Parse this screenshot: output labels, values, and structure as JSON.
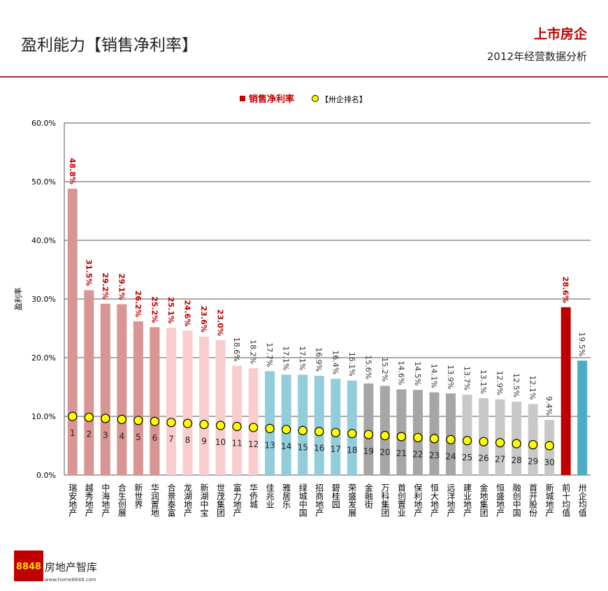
{
  "header": {
    "title": "盈利能力【销售净利率】",
    "brand": "上市房企",
    "subtitle": "2012年经营数据分析"
  },
  "footer": {
    "logo_number": "8848",
    "logo_text": "房地产智库",
    "url": "www.home8848.com"
  },
  "chart_data": {
    "type": "bar",
    "y_label": "盈利率",
    "categories": [
      "瑞安地产",
      "越秀地产",
      "中海地产",
      "合生创展",
      "新世界",
      "华润置地",
      "合景泰富",
      "龙湖地产",
      "新湖中宝",
      "世茂集团",
      "富力地产",
      "华侨城",
      "佳兆业",
      "雅居乐",
      "绿城中国",
      "招商地产",
      "碧桂园",
      "荣盛发展",
      "金融街",
      "万科集团",
      "首创置业",
      "保利地产",
      "恒大地产",
      "远洋地产",
      "建业地产",
      "金地集团",
      "恒盛地产",
      "融创中国",
      "首开股份",
      "新城地产",
      "前十均值",
      "卅企均值"
    ],
    "series": [
      {
        "name": "销售净利率",
        "color": "#c00000",
        "values": [
          48.8,
          31.5,
          29.2,
          29.1,
          26.2,
          25.2,
          25.1,
          24.6,
          23.6,
          23.0,
          18.6,
          18.2,
          17.7,
          17.1,
          17.1,
          16.9,
          16.4,
          16.1,
          15.6,
          15.2,
          14.6,
          14.5,
          14.1,
          13.9,
          13.7,
          13.1,
          12.9,
          12.5,
          12.1,
          9.4,
          28.6,
          19.5
        ],
        "value_labels": [
          "48.8%",
          "31.5%",
          "29.2%",
          "29.1%",
          "26.2%",
          "25.2%",
          "25.1%",
          "24.6%",
          "23.6%",
          "23.0%",
          "18.6%",
          "18.2%",
          "17.7%",
          "17.1%",
          "17.1%",
          "16.9%",
          "16.4%",
          "16.1%",
          "15.6%",
          "15.2%",
          "14.6%",
          "14.5%",
          "14.1%",
          "13.9%",
          "13.7%",
          "13.1%",
          "12.9%",
          "12.5%",
          "12.1%",
          "9.4%",
          "28.6%",
          "19.5%"
        ],
        "colors": [
          "#d99594",
          "#d99594",
          "#d99594",
          "#d99594",
          "#d99594",
          "#d99594",
          "#f9cdd0",
          "#f9cdd0",
          "#f9cdd0",
          "#f9cdd0",
          "#f9cdd0",
          "#f9cdd0",
          "#92cddc",
          "#92cddc",
          "#92cddc",
          "#92cddc",
          "#92cddc",
          "#92cddc",
          "#a6a6a6",
          "#a6a6a6",
          "#a6a6a6",
          "#a6a6a6",
          "#a6a6a6",
          "#a6a6a6",
          "#c8c8c8",
          "#c8c8c8",
          "#c8c8c8",
          "#c8c8c8",
          "#c8c8c8",
          "#c8c8c8",
          "#c00000",
          "#4bacc6"
        ],
        "label_colors": [
          "#c00000",
          "#c00000",
          "#c00000",
          "#c00000",
          "#c00000",
          "#c00000",
          "#c00000",
          "#c00000",
          "#c00000",
          "#c00000",
          "#333333",
          "#333333",
          "#333333",
          "#333333",
          "#333333",
          "#333333",
          "#333333",
          "#333333",
          "#333333",
          "#333333",
          "#333333",
          "#333333",
          "#333333",
          "#333333",
          "#333333",
          "#333333",
          "#333333",
          "#333333",
          "#333333",
          "#333333",
          "#c00000",
          "#333333"
        ]
      },
      {
        "name": "【卅企排名】",
        "color": "#ffff00",
        "axis": "y2",
        "values": [
          1,
          2,
          3,
          4,
          5,
          6,
          7,
          8,
          9,
          10,
          11,
          12,
          13,
          14,
          15,
          16,
          17,
          18,
          19,
          20,
          21,
          22,
          23,
          24,
          25,
          26,
          27,
          28,
          29,
          30,
          null,
          null
        ]
      }
    ],
    "ylim": [
      0,
      60
    ],
    "yticks": [
      {
        "value": 0,
        "label": "0.0%"
      },
      {
        "value": 10,
        "label": "10.0%"
      },
      {
        "value": 20,
        "label": "20.0%"
      },
      {
        "value": 30,
        "label": "30.0%"
      },
      {
        "value": 40,
        "label": "40.0%"
      },
      {
        "value": 50,
        "label": "50.0%"
      },
      {
        "value": 60,
        "label": "60.0%"
      }
    ],
    "y2lim": [
      59,
      -289
    ],
    "grid": true
  }
}
